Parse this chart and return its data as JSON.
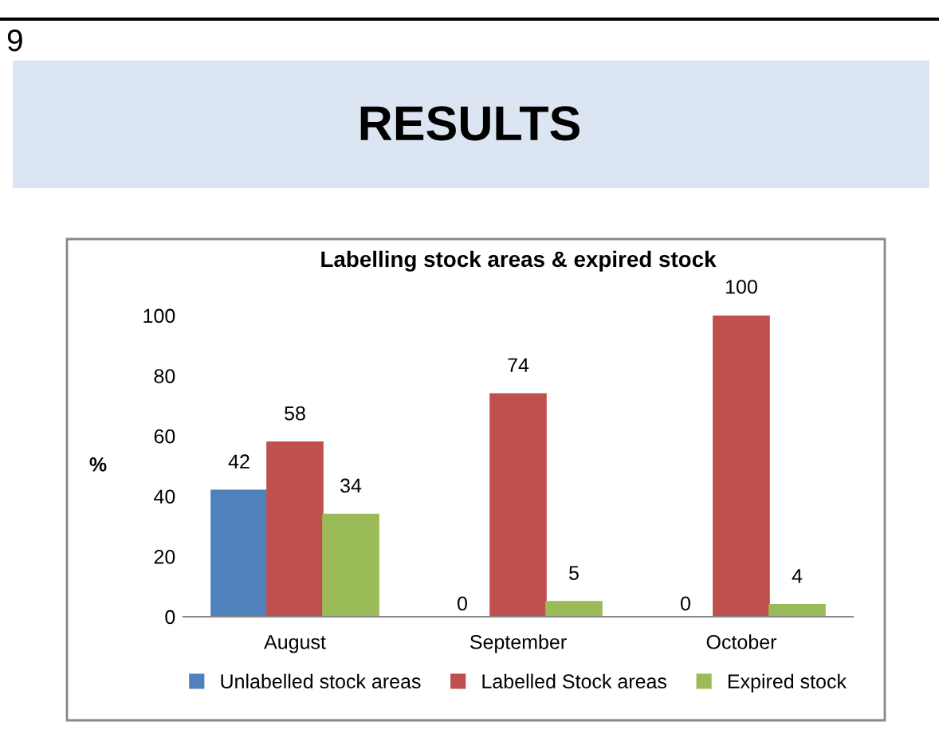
{
  "chart_data": {
    "type": "bar",
    "title": "Labelling stock areas & expired stock",
    "annotations": [
      "9",
      "RESULTS"
    ],
    "ylabel": "%",
    "categories": [
      "August",
      "September",
      "October"
    ],
    "series": [
      {
        "name": "Unlabelled stock areas",
        "color": "#4f81bd",
        "values": [
          42,
          0,
          0
        ]
      },
      {
        "name": "Labelled Stock areas",
        "color": "#c0504d",
        "values": [
          58,
          74,
          100
        ]
      },
      {
        "name": "Expired stock",
        "color": "#9bbb59",
        "values": [
          34,
          5,
          4
        ]
      }
    ],
    "ylim": [
      0,
      100
    ],
    "yticks": [
      0,
      20,
      40,
      60,
      80,
      100
    ],
    "data_labels": true,
    "grid": false,
    "legend": "bottom"
  }
}
